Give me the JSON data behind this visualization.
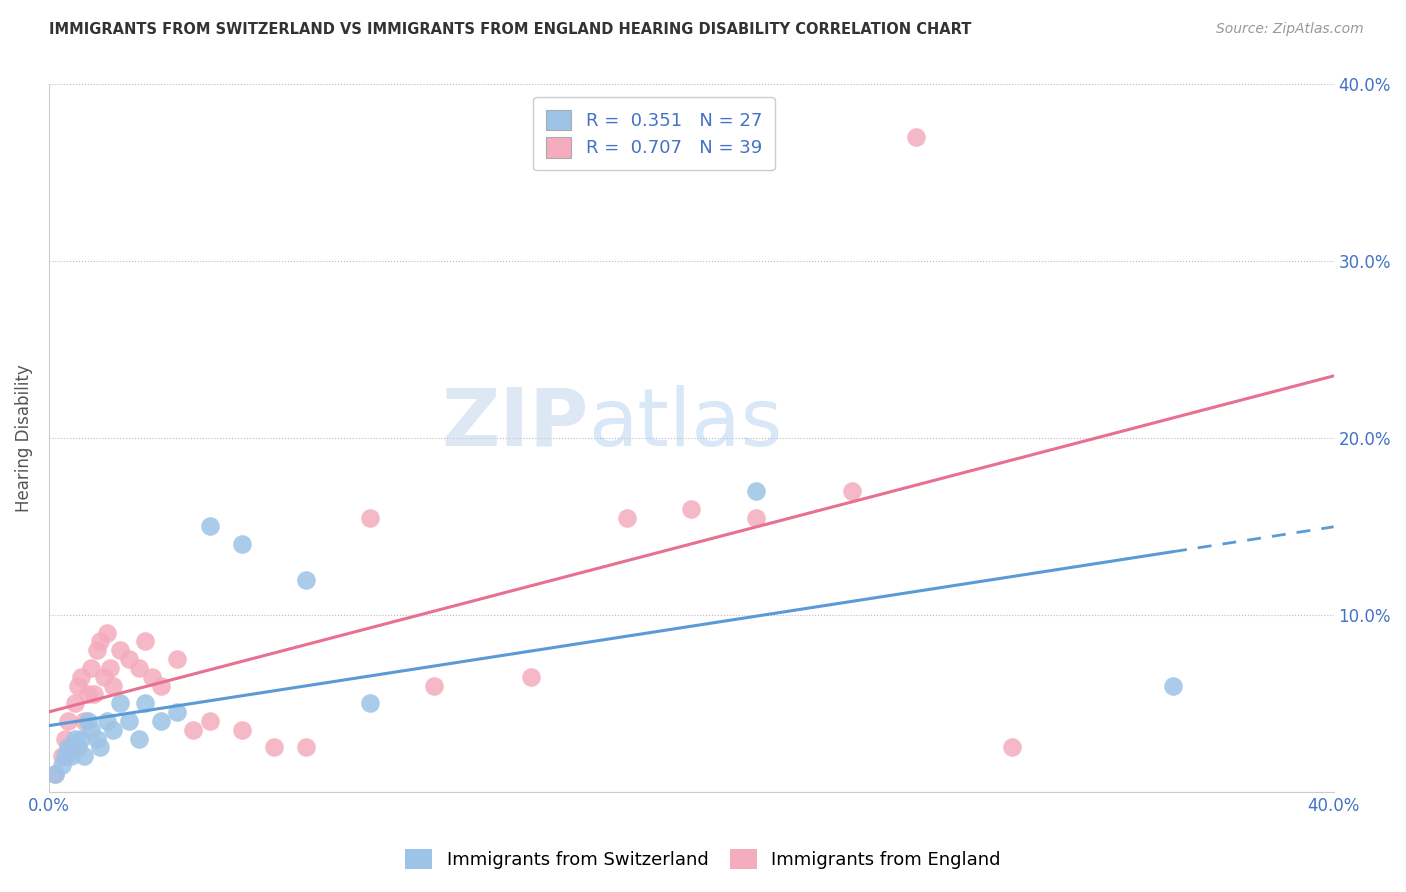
{
  "title": "IMMIGRANTS FROM SWITZERLAND VS IMMIGRANTS FROM ENGLAND HEARING DISABILITY CORRELATION CHART",
  "source": "Source: ZipAtlas.com",
  "ylabel": "Hearing Disability",
  "xlim": [
    0,
    0.4
  ],
  "ylim": [
    0,
    0.4
  ],
  "legend_label1": "Immigrants from Switzerland",
  "legend_label2": "Immigrants from England",
  "R1": "0.351",
  "N1": "27",
  "R2": "0.707",
  "N2": "39",
  "color_swiss": "#9DC3E6",
  "color_england": "#F4ACBE",
  "color_swiss_line": "#5B9BD5",
  "color_england_line": "#E87090",
  "watermark_zip": "ZIP",
  "watermark_atlas": "atlas",
  "swiss_x": [
    0.002,
    0.004,
    0.005,
    0.006,
    0.007,
    0.008,
    0.009,
    0.01,
    0.011,
    0.012,
    0.013,
    0.015,
    0.016,
    0.018,
    0.02,
    0.022,
    0.025,
    0.028,
    0.03,
    0.035,
    0.04,
    0.05,
    0.06,
    0.08,
    0.1,
    0.22,
    0.35
  ],
  "swiss_y": [
    0.01,
    0.015,
    0.02,
    0.025,
    0.02,
    0.03,
    0.025,
    0.03,
    0.02,
    0.04,
    0.035,
    0.03,
    0.025,
    0.04,
    0.035,
    0.05,
    0.04,
    0.03,
    0.05,
    0.04,
    0.045,
    0.15,
    0.14,
    0.12,
    0.05,
    0.17,
    0.06
  ],
  "england_x": [
    0.002,
    0.004,
    0.005,
    0.006,
    0.007,
    0.008,
    0.009,
    0.01,
    0.011,
    0.012,
    0.013,
    0.014,
    0.015,
    0.016,
    0.017,
    0.018,
    0.019,
    0.02,
    0.022,
    0.025,
    0.028,
    0.03,
    0.032,
    0.035,
    0.04,
    0.045,
    0.05,
    0.06,
    0.07,
    0.08,
    0.1,
    0.12,
    0.15,
    0.18,
    0.2,
    0.22,
    0.25,
    0.27,
    0.3
  ],
  "england_y": [
    0.01,
    0.02,
    0.03,
    0.04,
    0.025,
    0.05,
    0.06,
    0.065,
    0.04,
    0.055,
    0.07,
    0.055,
    0.08,
    0.085,
    0.065,
    0.09,
    0.07,
    0.06,
    0.08,
    0.075,
    0.07,
    0.085,
    0.065,
    0.06,
    0.075,
    0.035,
    0.04,
    0.035,
    0.025,
    0.025,
    0.155,
    0.06,
    0.065,
    0.155,
    0.16,
    0.155,
    0.17,
    0.37,
    0.025
  ],
  "background_color": "#FFFFFF",
  "grid_color": "#BBBBBB",
  "xtick_positions": [
    0.0,
    0.05,
    0.1,
    0.15,
    0.2,
    0.25,
    0.3,
    0.35,
    0.4
  ],
  "ytick_positions": [
    0.0,
    0.1,
    0.2,
    0.3,
    0.4
  ],
  "ytick_labels": [
    "",
    "10.0%",
    "20.0%",
    "30.0%",
    "40.0%"
  ],
  "swiss_line_x_end": 0.35,
  "swiss_line_dash_x_end": 0.4
}
